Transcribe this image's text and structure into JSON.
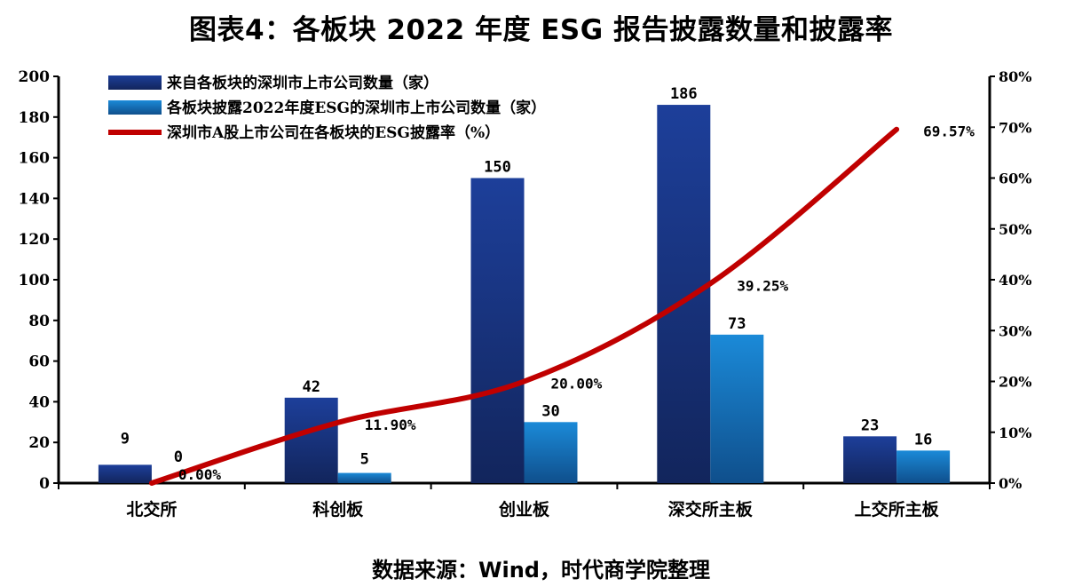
{
  "chart_data": {
    "type": "bar",
    "title": "图表4：各板块 2022 年度 ESG 报告披露数量和披露率",
    "categories": [
      "北交所",
      "科创板",
      "创业板",
      "深交所主板",
      "上交所主板"
    ],
    "series": [
      {
        "name": "来自各板块的深圳市上市公司数量（家）",
        "type": "bar",
        "axis": "left",
        "values": [
          9,
          42,
          150,
          186,
          23
        ],
        "labels": [
          "9",
          "42",
          "150",
          "186",
          "23"
        ],
        "color": "#1b3c8c"
      },
      {
        "name": "各板块披露2022年度ESG的深圳市上市公司数量（家）",
        "type": "bar",
        "axis": "left",
        "values": [
          0,
          5,
          30,
          73,
          16
        ],
        "labels": [
          "0",
          "5",
          "30",
          "73",
          "16"
        ],
        "color": "#1a82d0"
      },
      {
        "name": "深圳市A股上市公司在各板块的ESG披露率（%）",
        "type": "line",
        "axis": "right",
        "values": [
          0.0,
          11.9,
          20.0,
          39.25,
          69.57
        ],
        "labels": [
          "0.00%",
          "11.90%",
          "20.00%",
          "39.25%",
          "69.57%"
        ],
        "color": "#c00000"
      }
    ],
    "ylim": [
      0,
      200
    ],
    "yticks": [
      "0",
      "20",
      "40",
      "60",
      "80",
      "100",
      "120",
      "140",
      "160",
      "180",
      "200"
    ],
    "y2lim": [
      0,
      80
    ],
    "y2ticks": [
      "0%",
      "10%",
      "20%",
      "30%",
      "40%",
      "50%",
      "60%",
      "70%",
      "80%"
    ],
    "legend_position": "top-left",
    "source": "数据来源：Wind，时代商学院整理"
  }
}
